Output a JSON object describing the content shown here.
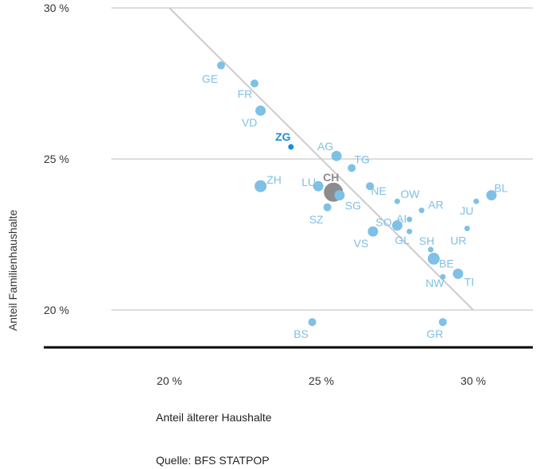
{
  "chart_data": {
    "type": "scatter",
    "xlabel": "Anteil älterer Haushalte",
    "ylabel": "Anteil Familienhaushalte",
    "source": "Quelle: BFS STATPOP",
    "xlim": [
      16.5,
      32.5
    ],
    "ylim": [
      19.0,
      30.0
    ],
    "xticks": [
      20,
      25,
      30
    ],
    "xtick_labels": [
      "20 %",
      "25 %",
      "30 %"
    ],
    "yticks": [
      20,
      25,
      30
    ],
    "ytick_labels": [
      "20 %",
      "25 %",
      "30 %"
    ],
    "grid": "horizontal",
    "trendline": {
      "x": [
        20.0,
        30.0
      ],
      "y": [
        30.0,
        20.0
      ]
    },
    "colors": {
      "point": "#7ec0e6",
      "label": "#7fc0e5",
      "highlight": "#1a8fcf",
      "average": "#8c8c8c",
      "trend": "#cccccc",
      "axis": "#000000",
      "grid": "#bbbbbb"
    },
    "points": [
      {
        "label": "GE",
        "x": 21.7,
        "y": 28.1,
        "size": "medium",
        "role": "canton"
      },
      {
        "label": "FR",
        "x": 22.8,
        "y": 27.5,
        "size": "medium",
        "role": "canton"
      },
      {
        "label": "VD",
        "x": 23.0,
        "y": 26.6,
        "size": "large",
        "role": "canton"
      },
      {
        "label": "ZG",
        "x": 24.0,
        "y": 25.4,
        "size": "small",
        "role": "highlight"
      },
      {
        "label": "AG",
        "x": 25.5,
        "y": 25.1,
        "size": "large",
        "role": "canton"
      },
      {
        "label": "TG",
        "x": 26.0,
        "y": 24.7,
        "size": "medium",
        "role": "canton"
      },
      {
        "label": "CH",
        "x": 25.4,
        "y": 23.9,
        "size": "xlarge",
        "role": "average"
      },
      {
        "label": "ZH",
        "x": 23.0,
        "y": 24.1,
        "size": "xlarge",
        "role": "canton"
      },
      {
        "label": "LU",
        "x": 24.9,
        "y": 24.1,
        "size": "large",
        "role": "canton"
      },
      {
        "label": "NE",
        "x": 26.6,
        "y": 24.1,
        "size": "medium",
        "role": "canton"
      },
      {
        "label": "SG",
        "x": 25.6,
        "y": 23.8,
        "size": "large",
        "role": "canton"
      },
      {
        "label": "OW",
        "x": 27.5,
        "y": 23.6,
        "size": "small",
        "role": "canton"
      },
      {
        "label": "AR",
        "x": 28.3,
        "y": 23.3,
        "size": "small",
        "role": "canton"
      },
      {
        "label": "AI",
        "x": 27.9,
        "y": 23.0,
        "size": "small",
        "role": "canton"
      },
      {
        "label": "SZ",
        "x": 25.2,
        "y": 23.4,
        "size": "medium",
        "role": "canton"
      },
      {
        "label": "SO",
        "x": 27.5,
        "y": 22.8,
        "size": "large",
        "role": "canton"
      },
      {
        "label": "GL",
        "x": 27.9,
        "y": 22.6,
        "size": "small",
        "role": "canton"
      },
      {
        "label": "VS",
        "x": 26.7,
        "y": 22.6,
        "size": "large",
        "role": "canton"
      },
      {
        "label": "BL",
        "x": 30.6,
        "y": 23.8,
        "size": "large",
        "role": "canton"
      },
      {
        "label": "JU",
        "x": 30.1,
        "y": 23.6,
        "size": "small",
        "role": "canton"
      },
      {
        "label": "UR",
        "x": 29.8,
        "y": 22.7,
        "size": "small",
        "role": "canton"
      },
      {
        "label": "SH",
        "x": 28.6,
        "y": 22.0,
        "size": "small",
        "role": "canton"
      },
      {
        "label": "BE",
        "x": 28.7,
        "y": 21.7,
        "size": "xlarge",
        "role": "canton"
      },
      {
        "label": "NW",
        "x": 29.0,
        "y": 21.1,
        "size": "small",
        "role": "canton"
      },
      {
        "label": "TI",
        "x": 29.5,
        "y": 21.2,
        "size": "large",
        "role": "canton"
      },
      {
        "label": "BS",
        "x": 24.7,
        "y": 19.6,
        "size": "medium",
        "role": "canton"
      },
      {
        "label": "GR",
        "x": 29.0,
        "y": 19.6,
        "size": "medium",
        "role": "canton"
      }
    ]
  }
}
